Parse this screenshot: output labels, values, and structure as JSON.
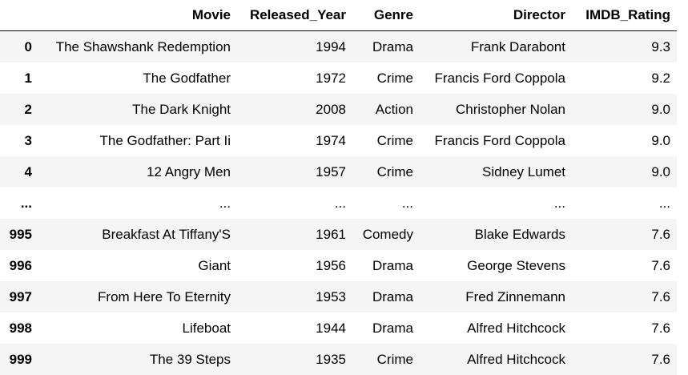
{
  "table": {
    "columns": [
      "",
      "Movie",
      "Released_Year",
      "Genre",
      "Director",
      "IMDB_Rating"
    ],
    "rows": [
      {
        "index": "0",
        "movie": "The Shawshank Redemption",
        "year": "1994",
        "genre": "Drama",
        "director": "Frank Darabont",
        "rating": "9.3"
      },
      {
        "index": "1",
        "movie": "The Godfather",
        "year": "1972",
        "genre": "Crime",
        "director": "Francis Ford Coppola",
        "rating": "9.2"
      },
      {
        "index": "2",
        "movie": "The Dark Knight",
        "year": "2008",
        "genre": "Action",
        "director": "Christopher Nolan",
        "rating": "9.0"
      },
      {
        "index": "3",
        "movie": "The Godfather: Part Ii",
        "year": "1974",
        "genre": "Crime",
        "director": "Francis Ford Coppola",
        "rating": "9.0"
      },
      {
        "index": "4",
        "movie": "12 Angry Men",
        "year": "1957",
        "genre": "Crime",
        "director": "Sidney Lumet",
        "rating": "9.0"
      },
      {
        "index": "...",
        "movie": "...",
        "year": "...",
        "genre": "...",
        "director": "...",
        "rating": "..."
      },
      {
        "index": "995",
        "movie": "Breakfast At Tiffany'S",
        "year": "1961",
        "genre": "Comedy",
        "director": "Blake Edwards",
        "rating": "7.6"
      },
      {
        "index": "996",
        "movie": "Giant",
        "year": "1956",
        "genre": "Drama",
        "director": "George Stevens",
        "rating": "7.6"
      },
      {
        "index": "997",
        "movie": "From Here To Eternity",
        "year": "1953",
        "genre": "Drama",
        "director": "Fred Zinnemann",
        "rating": "7.6"
      },
      {
        "index": "998",
        "movie": "Lifeboat",
        "year": "1944",
        "genre": "Drama",
        "director": "Alfred Hitchcock",
        "rating": "7.6"
      },
      {
        "index": "999",
        "movie": "The 39 Steps",
        "year": "1935",
        "genre": "Crime",
        "director": "Alfred Hitchcock",
        "rating": "7.6"
      }
    ]
  }
}
